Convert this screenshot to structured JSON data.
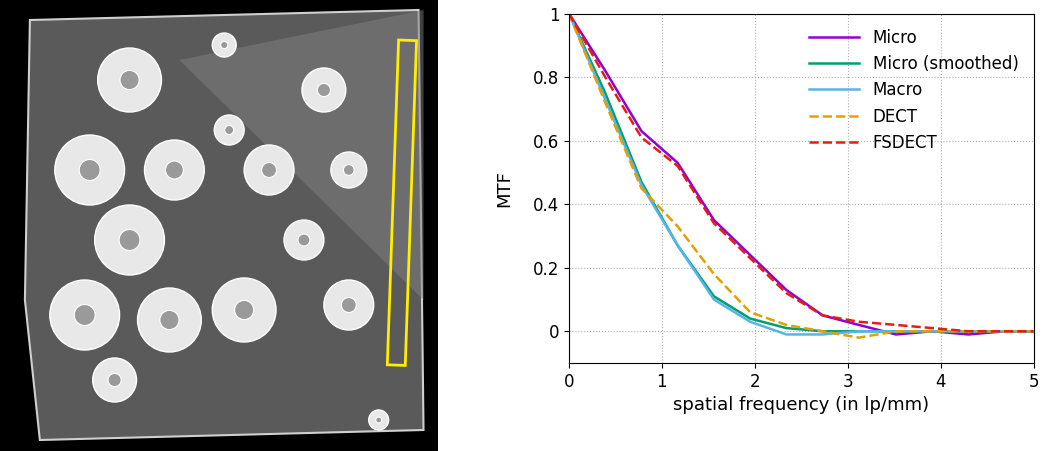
{
  "chart_data": {
    "type": "line",
    "x_label": "spatial frequency (in lp/mm)",
    "y_label": "MTF",
    "x": [
      0,
      0.39,
      0.78,
      1.17,
      1.56,
      1.95,
      2.34,
      2.73,
      3.12,
      3.52,
      3.91,
      4.3,
      4.69,
      5.0
    ],
    "series": [
      {
        "name": "Micro",
        "color": "#9400d3",
        "line_style": "solid",
        "values": [
          1,
          0.82,
          0.63,
          0.53,
          0.35,
          0.24,
          0.13,
          0.05,
          0.02,
          -0.01,
          0.0,
          -0.01,
          0.0,
          0.0
        ]
      },
      {
        "name": "Micro (smoothed)",
        "color": "#009e73",
        "line_style": "solid",
        "values": [
          1,
          0.75,
          0.47,
          0.27,
          0.11,
          0.04,
          0.01,
          0.0,
          0.0,
          0.0,
          0.0,
          0.0,
          0.0,
          0.0
        ]
      },
      {
        "name": "Macro",
        "color": "#56b4e9",
        "line_style": "solid",
        "values": [
          1,
          0.73,
          0.46,
          0.27,
          0.1,
          0.03,
          -0.01,
          -0.01,
          0.0,
          0.0,
          0.0,
          0.0,
          0.0,
          0.0
        ]
      },
      {
        "name": "DECT",
        "color": "#e69f00",
        "line_style": "dashed",
        "values": [
          1,
          0.72,
          0.45,
          0.33,
          0.18,
          0.06,
          0.02,
          0.0,
          -0.02,
          0.0,
          0.0,
          0.0,
          0.0,
          0.0
        ]
      },
      {
        "name": "FSDECT",
        "color": "#e51e10",
        "line_style": "dashed",
        "values": [
          1,
          0.8,
          0.61,
          0.52,
          0.34,
          0.23,
          0.12,
          0.05,
          0.03,
          0.02,
          0.01,
          0.0,
          0.0,
          0.0
        ]
      }
    ],
    "xlim": [
      0,
      5
    ],
    "xticks": [
      0,
      1,
      2,
      3,
      4,
      5
    ],
    "ylim": [
      -0.1,
      1
    ],
    "yticks": [
      0,
      0.2,
      0.4,
      0.6,
      0.8,
      1
    ],
    "grid": true,
    "legend": "upper right"
  }
}
